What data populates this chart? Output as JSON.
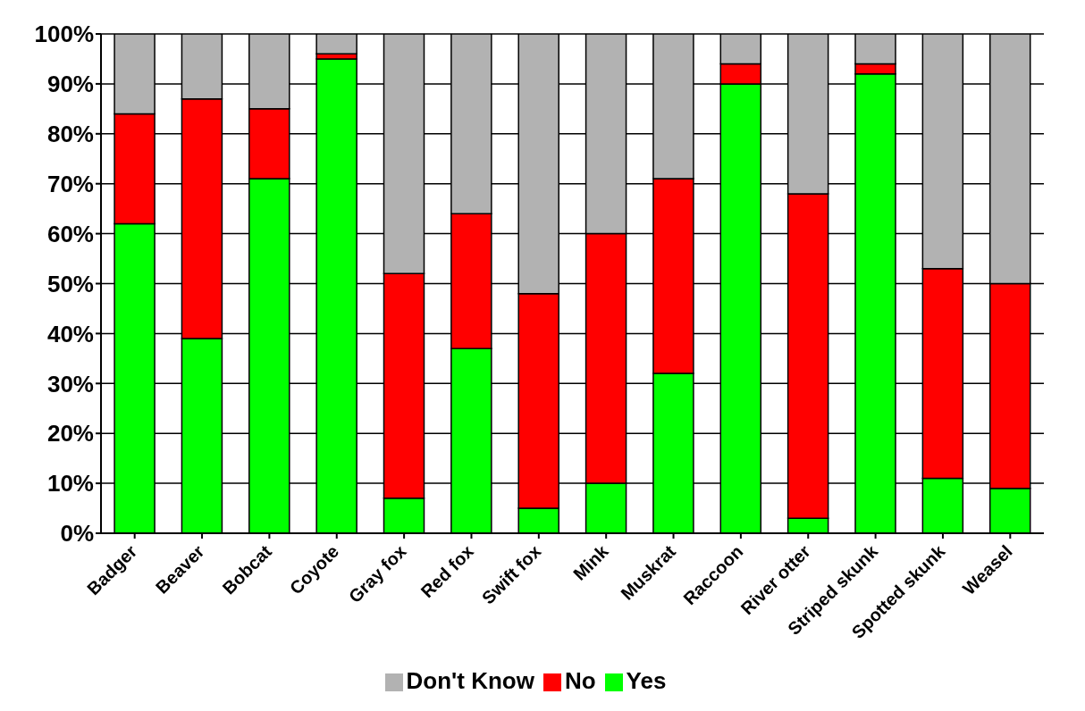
{
  "chart_data": {
    "type": "bar",
    "stacked": true,
    "categories": [
      "Badger",
      "Beaver",
      "Bobcat",
      "Coyote",
      "Gray fox",
      "Red fox",
      "Swift fox",
      "Mink",
      "Muskrat",
      "Raccoon",
      "River otter",
      "Striped skunk",
      "Spotted skunk",
      "Weasel"
    ],
    "series": [
      {
        "name": "Yes",
        "color": "#00ff00",
        "values": [
          62,
          39,
          71,
          95,
          7,
          37,
          5,
          10,
          32,
          90,
          3,
          92,
          11,
          9
        ]
      },
      {
        "name": "No",
        "color": "#ff0000",
        "values": [
          22,
          48,
          14,
          1,
          45,
          27,
          43,
          50,
          39,
          4,
          65,
          2,
          42,
          41
        ]
      },
      {
        "name": "Don't Know",
        "color": "#b2b2b2",
        "values": [
          16,
          13,
          15,
          4,
          48,
          36,
          52,
          40,
          29,
          6,
          32,
          6,
          47,
          50
        ]
      }
    ],
    "ylim": [
      0,
      100
    ],
    "yticks": [
      {
        "value": 0,
        "label": "0%"
      },
      {
        "value": 10,
        "label": "10%"
      },
      {
        "value": 20,
        "label": "20%"
      },
      {
        "value": 30,
        "label": "30%"
      },
      {
        "value": 40,
        "label": "40%"
      },
      {
        "value": 50,
        "label": "50%"
      },
      {
        "value": 60,
        "label": "60%"
      },
      {
        "value": 70,
        "label": "70%"
      },
      {
        "value": 80,
        "label": "80%"
      },
      {
        "value": 90,
        "label": "90%"
      },
      {
        "value": 100,
        "label": "100%"
      }
    ],
    "grid": "y",
    "legend": "bottom"
  }
}
